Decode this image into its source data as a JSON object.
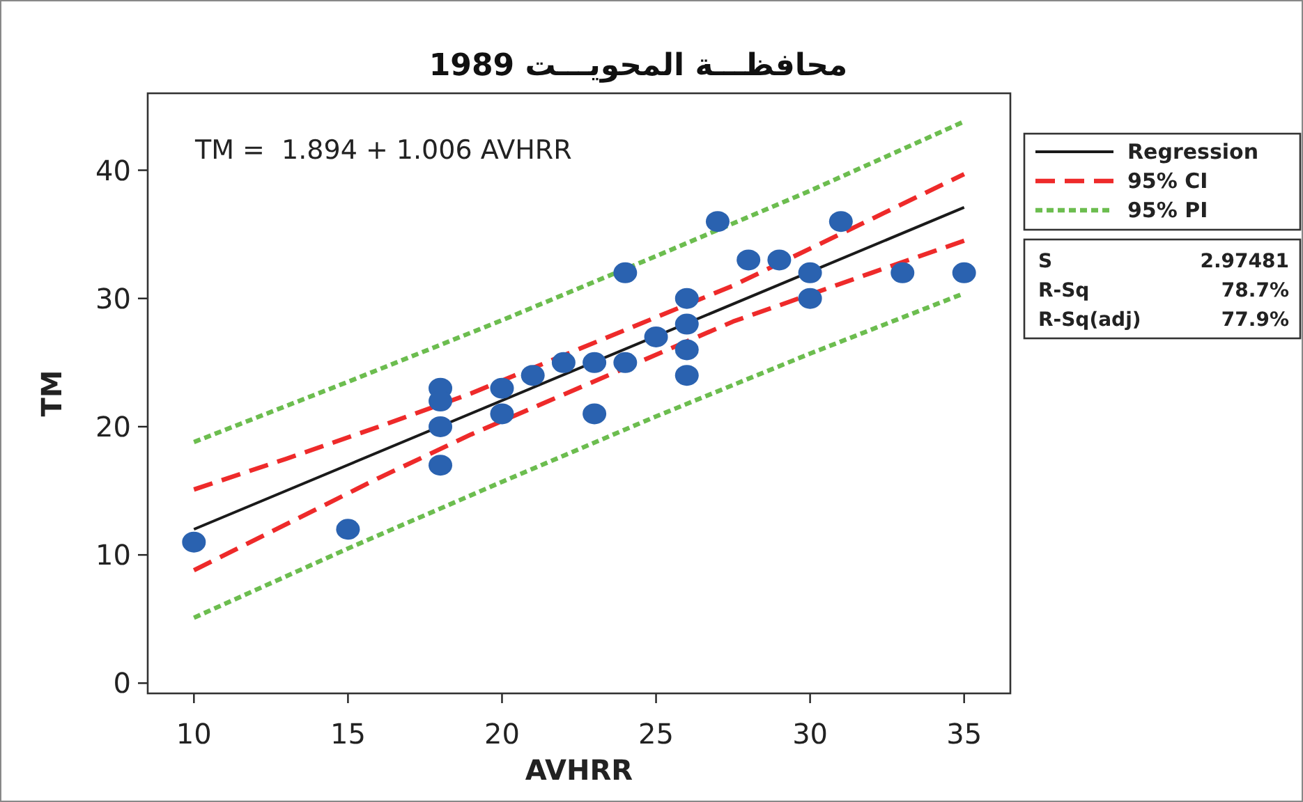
{
  "chart_data": {
    "type": "scatter",
    "title": "محافظـــة المحويـــت 1989",
    "xlabel": "AVHRR",
    "ylabel": "TM",
    "xlim": [
      8.5,
      36.5
    ],
    "ylim": [
      -0.8,
      46
    ],
    "xticks": [
      10,
      15,
      20,
      25,
      30,
      35
    ],
    "yticks": [
      0,
      10,
      20,
      30,
      40
    ],
    "legend": "right",
    "series": [
      {
        "color": "#2a62b0",
        "marker": "circle",
        "x": [
          10,
          15,
          18,
          18,
          18,
          18,
          20,
          20,
          21,
          22,
          23,
          23,
          24,
          24,
          25,
          26,
          26,
          26,
          26,
          27,
          28,
          29,
          30,
          30,
          31,
          33,
          35
        ],
        "values": [
          11,
          12,
          23,
          22,
          20,
          17,
          23,
          21,
          24,
          25,
          25,
          21,
          32,
          25,
          27,
          30,
          28,
          26,
          24,
          36,
          33,
          33,
          32,
          30,
          36,
          32,
          32
        ]
      },
      {
        "type": "line",
        "name": "Regression",
        "color": "#1a1a1a",
        "line_style": "solid",
        "x": [
          10,
          35
        ],
        "values": [
          12.0,
          37.1
        ]
      },
      {
        "type": "line",
        "name": "95% CI",
        "color": "#ee2a2a",
        "line_style": "dashed",
        "x": [
          10,
          13,
          16,
          19,
          27.5,
          32,
          35
        ],
        "values": [
          15.1,
          17.5,
          20.0,
          22.6,
          31.0,
          36.2,
          39.7
        ]
      },
      {
        "type": "line",
        "color": "#ee2a2a",
        "line_style": "dashed",
        "x": [
          10,
          13,
          16,
          19,
          27.5,
          32,
          35
        ],
        "values": [
          8.8,
          12.4,
          16.0,
          19.4,
          28.2,
          32.0,
          34.5
        ]
      },
      {
        "type": "line",
        "name": "95% PI",
        "color": "#6cbd4f",
        "line_style": "dotted",
        "x": [
          10,
          15,
          20,
          25,
          30,
          35
        ],
        "values": [
          18.8,
          23.5,
          28.3,
          33.3,
          38.4,
          43.8
        ]
      },
      {
        "type": "line",
        "color": "#6cbd4f",
        "line_style": "dotted",
        "x": [
          10,
          15,
          20,
          25,
          30,
          35
        ],
        "values": [
          5.1,
          10.5,
          15.7,
          20.8,
          25.7,
          30.4
        ]
      }
    ],
    "annotations": [
      "TM =  1.894 + 1.006 AVHRR",
      "S",
      "2.97481",
      "R-Sq",
      "78.7%",
      "R-Sq(adj)",
      "77.9%"
    ]
  }
}
